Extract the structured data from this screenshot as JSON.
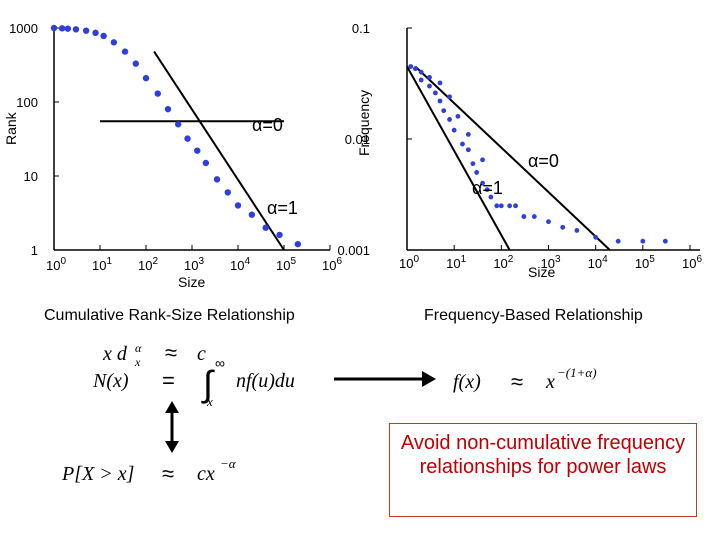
{
  "chart_data": [
    {
      "type": "scatter",
      "title": "Cumulative Rank-Size Relationship",
      "xlabel": "Size",
      "ylabel": "Rank",
      "x_scale": "log",
      "y_scale": "log",
      "xlim": [
        1,
        1000000
      ],
      "ylim": [
        1,
        1000
      ],
      "x_ticks": [
        "10^0",
        "10^1",
        "10^2",
        "10^3",
        "10^4",
        "10^5",
        "10^6"
      ],
      "y_ticks": [
        "1",
        "10",
        "100",
        "1000"
      ],
      "series": [
        {
          "x": [
            1,
            1.5,
            2,
            3,
            5,
            8,
            12,
            20,
            35,
            60,
            100,
            180,
            300,
            500,
            800,
            1300,
            2000,
            3500,
            6000,
            10000,
            20000,
            40000,
            80000,
            200000
          ],
          "y": [
            1000,
            990,
            980,
            960,
            920,
            860,
            780,
            640,
            480,
            330,
            210,
            130,
            80,
            50,
            32,
            22,
            15,
            9,
            6,
            4,
            3,
            2,
            1.6,
            1.2
          ]
        }
      ],
      "reference_lines": [
        {
          "label": "α=0",
          "from": [
            10,
            55
          ],
          "to": [
            100000,
            55
          ]
        },
        {
          "label": "α=1",
          "from": [
            150,
            480
          ],
          "to": [
            100000,
            1
          ]
        }
      ],
      "annotations": [
        "α=0",
        "α=1"
      ]
    },
    {
      "type": "scatter",
      "title": "Frequency-Based Relationship",
      "xlabel": "Size",
      "ylabel": "Frequency",
      "x_scale": "log",
      "y_scale": "log",
      "xlim": [
        1,
        1000000
      ],
      "ylim": [
        0.001,
        0.1
      ],
      "x_ticks": [
        "10^0",
        "10^1",
        "10^2",
        "10^3",
        "10^4",
        "10^5",
        "10^6"
      ],
      "y_ticks": [
        "0.001",
        "0.01",
        "0.1"
      ],
      "series": [
        {
          "x": [
            1.2,
            1.5,
            2,
            2,
            3,
            3,
            4,
            5,
            5,
            6,
            8,
            8,
            10,
            12,
            15,
            20,
            20,
            25,
            30,
            40,
            40,
            50,
            60,
            80,
            100,
            150,
            200,
            300,
            500,
            1000,
            2000,
            4000,
            10000,
            30000,
            100000,
            300000
          ],
          "y": [
            0.045,
            0.043,
            0.034,
            0.04,
            0.03,
            0.036,
            0.026,
            0.022,
            0.032,
            0.018,
            0.015,
            0.024,
            0.012,
            0.016,
            0.009,
            0.008,
            0.011,
            0.006,
            0.005,
            0.004,
            0.0065,
            0.0035,
            0.003,
            0.0025,
            0.0025,
            0.0025,
            0.0025,
            0.002,
            0.002,
            0.0018,
            0.0016,
            0.0015,
            0.0013,
            0.0012,
            0.0012,
            0.0012
          ]
        }
      ],
      "reference_lines": [
        {
          "label": "α=0",
          "from": [
            1.5,
            0.045
          ],
          "to": [
            20000,
            0.001
          ]
        },
        {
          "label": "α=1",
          "from": [
            1,
            0.045
          ],
          "to": [
            150,
            0.001
          ]
        }
      ],
      "annotations": [
        "α=0",
        "α=1"
      ]
    }
  ],
  "left_chart": {
    "title": "Cumulative Rank-Size Relationship",
    "xlabel": "Size",
    "ylabel": "Rank",
    "x_tick_base": "10",
    "x_tick_exponents": [
      "0",
      "1",
      "2",
      "3",
      "4",
      "5",
      "6"
    ],
    "y_ticks": [
      "1",
      "10",
      "100",
      "1000"
    ],
    "label_alpha0": "α=0",
    "label_alpha1": "α=1"
  },
  "right_chart": {
    "title": "Frequency-Based Relationship",
    "xlabel": "Size",
    "ylabel": "Frequency",
    "x_tick_base": "10",
    "x_tick_exponents": [
      "0",
      "1",
      "2",
      "3",
      "4",
      "5",
      "6"
    ],
    "y_ticks": [
      "0.001",
      "0.01",
      "0.1"
    ],
    "label_alpha0": "α=0",
    "label_alpha1": "α=1"
  },
  "equations": {
    "eq1": {
      "left": "x d",
      "sub": "x",
      "sup": "α",
      "rel": "≈",
      "right": "c"
    },
    "eq2": {
      "left": "N(x)",
      "rel": "=",
      "integral": "∫",
      "upper": "∞",
      "lower": "x",
      "right": "nf(u)du"
    },
    "eq3": {
      "left": "f(x)",
      "rel": "≈",
      "base": "x",
      "sup": "−(1+α)"
    },
    "eq4": {
      "left": "P[X > x]",
      "rel": "≈",
      "base": "cx",
      "sup": "−α"
    }
  },
  "callout": {
    "text": "Avoid non-cumulative frequency relationships for power laws",
    "color": "#c00000"
  },
  "colors": {
    "data_points": "#2f3fd9",
    "line": "#000000",
    "callout_border": "#c0392b"
  }
}
